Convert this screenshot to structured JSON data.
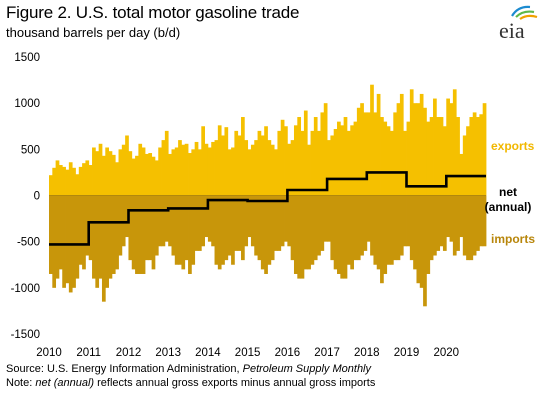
{
  "figure": {
    "title": "Figure 2. U.S. total motor gasoline trade",
    "subtitle": "thousand barrels per day (b/d)",
    "logo_text": "eia"
  },
  "source": {
    "line1_prefix": "Source: U.S. Energy Information Administration, ",
    "line1_italic": "Petroleum Supply Monthly",
    "line2_prefix": "Note: ",
    "line2_italic": "net (annual)",
    "line2_suffix": " reflects annual gross exports minus annual gross imports"
  },
  "colors": {
    "exports": "#f5c000",
    "imports": "#c8960a",
    "net": "#000000",
    "exports_label": "#f2b800",
    "imports_label": "#b8860b"
  },
  "chart_data": {
    "type": "bar",
    "xlabel": "",
    "ylabel": "",
    "ylim": [
      -1500,
      1500
    ],
    "yticks": [
      1500,
      1000,
      500,
      0,
      -500,
      -1000,
      -1500
    ],
    "xticks": [
      "2010",
      "2011",
      "2012",
      "2013",
      "2014",
      "2015",
      "2016",
      "2017",
      "2018",
      "2019",
      "2020"
    ],
    "grid": false,
    "series": [
      {
        "name": "exports",
        "type": "bar",
        "frequency": "monthly",
        "start": "2010-01",
        "values": [
          220,
          300,
          380,
          330,
          310,
          280,
          360,
          300,
          230,
          310,
          350,
          380,
          330,
          520,
          480,
          560,
          430,
          520,
          480,
          440,
          360,
          500,
          550,
          650,
          480,
          400,
          430,
          560,
          520,
          450,
          460,
          420,
          380,
          520,
          600,
          700,
          450,
          500,
          520,
          600,
          550,
          560,
          460,
          500,
          580,
          500,
          750,
          560,
          520,
          580,
          600,
          760,
          650,
          740,
          500,
          520,
          700,
          650,
          850,
          600,
          500,
          550,
          600,
          700,
          650,
          750,
          600,
          550,
          500,
          700,
          820,
          750,
          560,
          600,
          760,
          850,
          700,
          920,
          550,
          700,
          850,
          700,
          900,
          1000,
          600,
          650,
          720,
          800,
          760,
          850,
          700,
          760,
          800,
          950,
          1000,
          900,
          900,
          1200,
          900,
          1100,
          850,
          800,
          750,
          700,
          900,
          1000,
          1100,
          700,
          800,
          1150,
          1000,
          1000,
          1100,
          950,
          800,
          850,
          1050,
          850,
          850,
          750,
          1050,
          1000,
          1150,
          850,
          450,
          650,
          750,
          850,
          900,
          850,
          880,
          1000
        ]
      },
      {
        "name": "imports",
        "type": "bar",
        "frequency": "monthly",
        "start": "2010-01",
        "values": [
          -850,
          -1000,
          -900,
          -800,
          -1000,
          -950,
          -1050,
          -1000,
          -900,
          -750,
          -800,
          -650,
          -700,
          -900,
          -1000,
          -900,
          -1150,
          -1000,
          -900,
          -850,
          -800,
          -650,
          -550,
          -450,
          -700,
          -800,
          -850,
          -850,
          -850,
          -700,
          -700,
          -800,
          -650,
          -550,
          -550,
          -500,
          -550,
          -650,
          -750,
          -750,
          -800,
          -700,
          -850,
          -750,
          -600,
          -600,
          -550,
          -450,
          -500,
          -550,
          -750,
          -800,
          -750,
          -700,
          -650,
          -750,
          -600,
          -600,
          -700,
          -550,
          -450,
          -550,
          -650,
          -700,
          -800,
          -850,
          -750,
          -700,
          -600,
          -600,
          -550,
          -500,
          -550,
          -700,
          -850,
          -900,
          -900,
          -800,
          -800,
          -750,
          -700,
          -650,
          -600,
          -500,
          -500,
          -700,
          -800,
          -850,
          -900,
          -900,
          -750,
          -800,
          -700,
          -700,
          -650,
          -600,
          -500,
          -650,
          -750,
          -800,
          -950,
          -850,
          -750,
          -750,
          -700,
          -700,
          -650,
          -550,
          -550,
          -700,
          -800,
          -950,
          -1000,
          -1200,
          -850,
          -700,
          -650,
          -600,
          -550,
          -600,
          -450,
          -500,
          -650,
          -600,
          -450,
          -650,
          -700,
          -700,
          -650,
          -600,
          -550,
          -550
        ]
      },
      {
        "name": "net (annual)",
        "type": "step",
        "x": [
          "2010",
          "2011",
          "2012",
          "2013",
          "2014",
          "2015",
          "2016",
          "2017",
          "2018",
          "2019",
          "2020"
        ],
        "values": [
          -530,
          -290,
          -160,
          -140,
          -50,
          -60,
          60,
          180,
          250,
          100,
          210
        ]
      }
    ],
    "legend": "right"
  }
}
